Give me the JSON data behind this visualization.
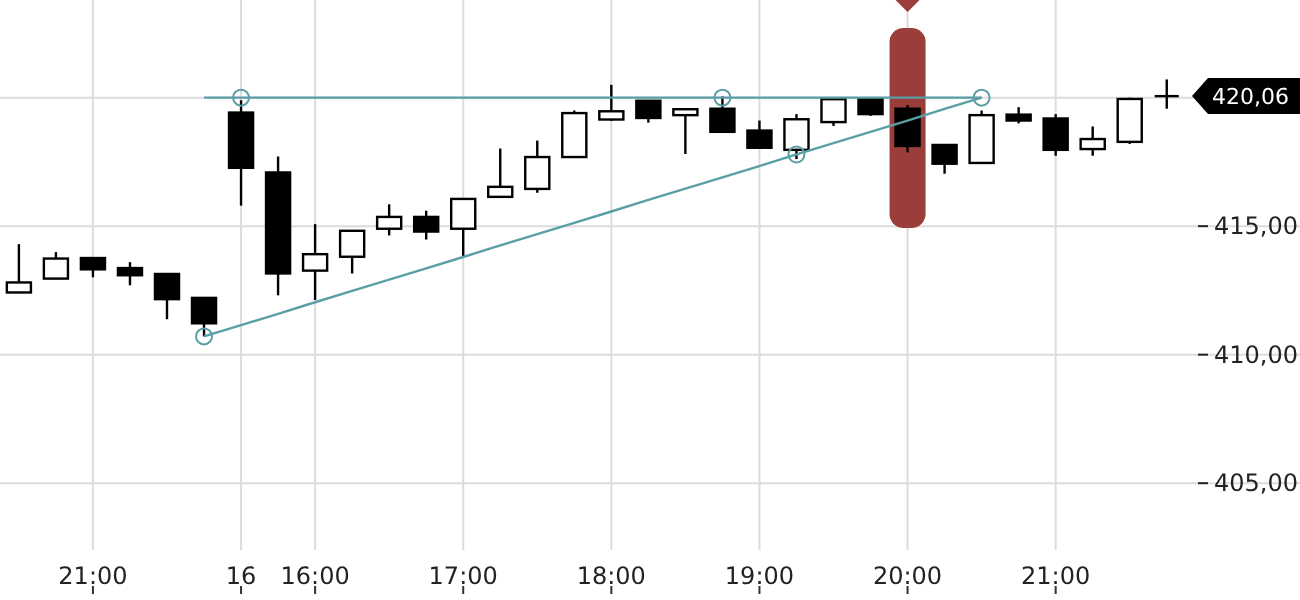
{
  "chart_data": {
    "type": "candlestick",
    "categories": [
      null,
      null,
      "21:00",
      null,
      null,
      null,
      "16",
      null,
      "16:00",
      null,
      null,
      null,
      "17:00",
      null,
      null,
      null,
      "18:00",
      null,
      null,
      null,
      "19:00",
      null,
      null,
      null,
      "20:00",
      null,
      null,
      null,
      "21:00",
      null,
      null,
      null
    ],
    "ohlc": [
      [
        412.42,
        414.3,
        412.42,
        412.81
      ],
      [
        412.96,
        413.99,
        412.96,
        413.74
      ],
      [
        413.76,
        413.76,
        413.01,
        413.32
      ],
      [
        413.37,
        413.6,
        412.7,
        413.09
      ],
      [
        413.14,
        413.14,
        411.38,
        412.16
      ],
      [
        412.21,
        412.21,
        410.71,
        411.22
      ],
      [
        419.42,
        419.9,
        415.8,
        417.27
      ],
      [
        417.09,
        417.71,
        412.31,
        413.16
      ],
      [
        413.27,
        415.08,
        412.13,
        413.91
      ],
      [
        413.81,
        414.82,
        413.16,
        414.82
      ],
      [
        414.9,
        415.85,
        414.64,
        415.36
      ],
      [
        415.36,
        415.6,
        414.48,
        414.79
      ],
      [
        414.9,
        416.06,
        413.84,
        416.06
      ],
      [
        416.14,
        418.02,
        416.14,
        416.53
      ],
      [
        416.45,
        418.33,
        416.3,
        417.69
      ],
      [
        417.69,
        419.5,
        417.69,
        419.4
      ],
      [
        419.15,
        420.5,
        419.1,
        419.47
      ],
      [
        419.88,
        419.88,
        419.03,
        419.21
      ],
      [
        419.32,
        419.55,
        417.81,
        419.55
      ],
      [
        419.57,
        420.05,
        418.67,
        418.67
      ],
      [
        418.72,
        419.11,
        418.05,
        418.05
      ],
      [
        417.97,
        419.36,
        417.61,
        419.16
      ],
      [
        419.05,
        419.94,
        418.9,
        419.94
      ],
      [
        419.96,
        420.01,
        419.29,
        419.36
      ],
      [
        419.57,
        419.71,
        417.87,
        418.12
      ],
      [
        418.16,
        418.16,
        417.04,
        417.43
      ],
      [
        417.46,
        419.5,
        417.46,
        419.32
      ],
      [
        419.34,
        419.63,
        419.0,
        419.11
      ],
      [
        419.19,
        419.36,
        417.74,
        417.97
      ],
      [
        418.0,
        418.88,
        417.74,
        418.39
      ],
      [
        418.28,
        420.0,
        418.2,
        419.95
      ],
      [
        420.06,
        420.71,
        419.57,
        420.06
      ]
    ],
    "series": [
      {
        "type": "line",
        "color": "#5a9ea6",
        "values": [
          null,
          null,
          null,
          null,
          null,
          420.0,
          420.0,
          420.0,
          420.0,
          420.0,
          420.0,
          420.0,
          420.0,
          420.0,
          420.0,
          420.0,
          420.0,
          420.0,
          420.0,
          420.0,
          420.0,
          420.0,
          420.0,
          420.0,
          420.0,
          420.0,
          420.0,
          null,
          null,
          null,
          null,
          null
        ]
      },
      {
        "type": "line",
        "color": "#5a9ea6",
        "values": [
          null,
          null,
          null,
          null,
          null,
          410.71,
          411.15,
          411.59,
          412.04,
          412.48,
          412.92,
          413.36,
          413.8,
          414.25,
          414.69,
          415.13,
          415.57,
          416.02,
          416.46,
          416.9,
          417.34,
          417.79,
          418.23,
          418.67,
          419.11,
          419.56,
          420.0,
          null,
          null,
          null,
          null,
          null
        ]
      },
      {
        "type": "scatter",
        "color": "#5a9ea6",
        "marker": "circle",
        "values": [
          null,
          null,
          null,
          null,
          null,
          410.71,
          420.0,
          null,
          null,
          null,
          null,
          null,
          null,
          null,
          null,
          null,
          null,
          null,
          null,
          420.0,
          null,
          417.79,
          null,
          null,
          null,
          null,
          420.0,
          null,
          null,
          null,
          null,
          null
        ]
      }
    ],
    "ylim": [
      402.4,
      423.8
    ],
    "yticks": [
      {
        "value": 405,
        "label": "405,00"
      },
      {
        "value": 410,
        "label": "410,00"
      },
      {
        "value": 415,
        "label": "415,00"
      },
      {
        "value": 420,
        "label": null
      }
    ],
    "annotations": [
      "420,06"
    ],
    "grid": true
  }
}
